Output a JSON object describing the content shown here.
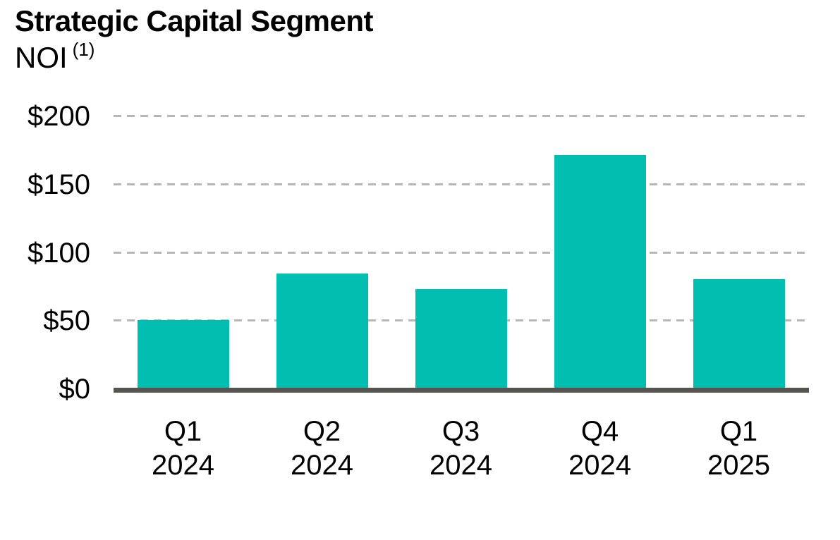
{
  "chart_data": {
    "type": "bar",
    "title": "Strategic Capital Segment",
    "subtitle": "NOI",
    "subtitle_note_marker": "(1)",
    "categories": [
      "Q1 2024",
      "Q2 2024",
      "Q3 2024",
      "Q4 2024",
      "Q1 2025"
    ],
    "values": [
      50,
      84,
      73,
      171,
      80
    ],
    "ylim": [
      0,
      200
    ],
    "yticks": [
      {
        "value": 0,
        "label": "$0"
      },
      {
        "value": 50,
        "label": "$50"
      },
      {
        "value": 100,
        "label": "$100"
      },
      {
        "value": 150,
        "label": "$150"
      },
      {
        "value": 200,
        "label": "$200"
      }
    ],
    "grid": "horizontal-dashed",
    "legend": "none",
    "colors": {
      "bar": "#00BFB0",
      "gridline": "#B7B7B7",
      "axis_line": "#55544E",
      "text": "#000000"
    }
  }
}
